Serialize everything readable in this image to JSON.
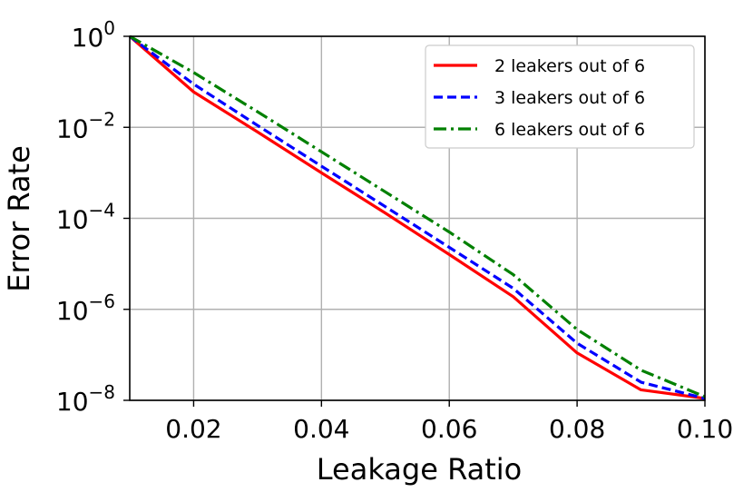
{
  "chart_data": {
    "type": "line",
    "title": "",
    "xlabel": "Leakage Ratio",
    "ylabel": "Error Rate",
    "xlim": [
      0.01,
      0.1
    ],
    "ylim": [
      1e-08,
      1
    ],
    "y_scale": "log",
    "grid": true,
    "legend_position": "top-right",
    "x_ticks": [
      {
        "value": 0.02,
        "label": "0.02"
      },
      {
        "value": 0.04,
        "label": "0.04"
      },
      {
        "value": 0.06,
        "label": "0.06"
      },
      {
        "value": 0.08,
        "label": "0.08"
      },
      {
        "value": 0.1,
        "label": "0.10"
      }
    ],
    "y_ticks": [
      {
        "value": 1,
        "base": "10",
        "exponent": "0"
      },
      {
        "value": 0.01,
        "base": "10",
        "exponent": "−2"
      },
      {
        "value": 0.0001,
        "base": "10",
        "exponent": "−4"
      },
      {
        "value": 1e-06,
        "base": "10",
        "exponent": "−6"
      },
      {
        "value": 1e-08,
        "base": "10",
        "exponent": "−8"
      }
    ],
    "x": [
      0.01,
      0.02,
      0.03,
      0.04,
      0.05,
      0.06,
      0.07,
      0.08,
      0.09,
      0.1
    ],
    "series": [
      {
        "name": "2 leakers out of 6",
        "color": "#ff0000",
        "dash": "solid",
        "values": [
          1.0,
          0.06,
          0.0079,
          0.001,
          0.00013,
          1.6e-05,
          1.9e-06,
          1.1e-07,
          1.7e-08,
          1.1e-08
        ]
      },
      {
        "name": "3 leakers out of 6",
        "color": "#0000ff",
        "dash": "dashed",
        "values": [
          1.0,
          0.089,
          0.011,
          0.0014,
          0.00018,
          2.3e-05,
          2.9e-06,
          1.8e-07,
          2.5e-08,
          1.1e-08
        ]
      },
      {
        "name": "6 leakers out of 6",
        "color": "#008000",
        "dash": "dashdot",
        "values": [
          1.0,
          0.16,
          0.022,
          0.0029,
          0.00038,
          5e-05,
          5.8e-06,
          3.6e-07,
          4.6e-08,
          1.2e-08
        ]
      }
    ]
  }
}
